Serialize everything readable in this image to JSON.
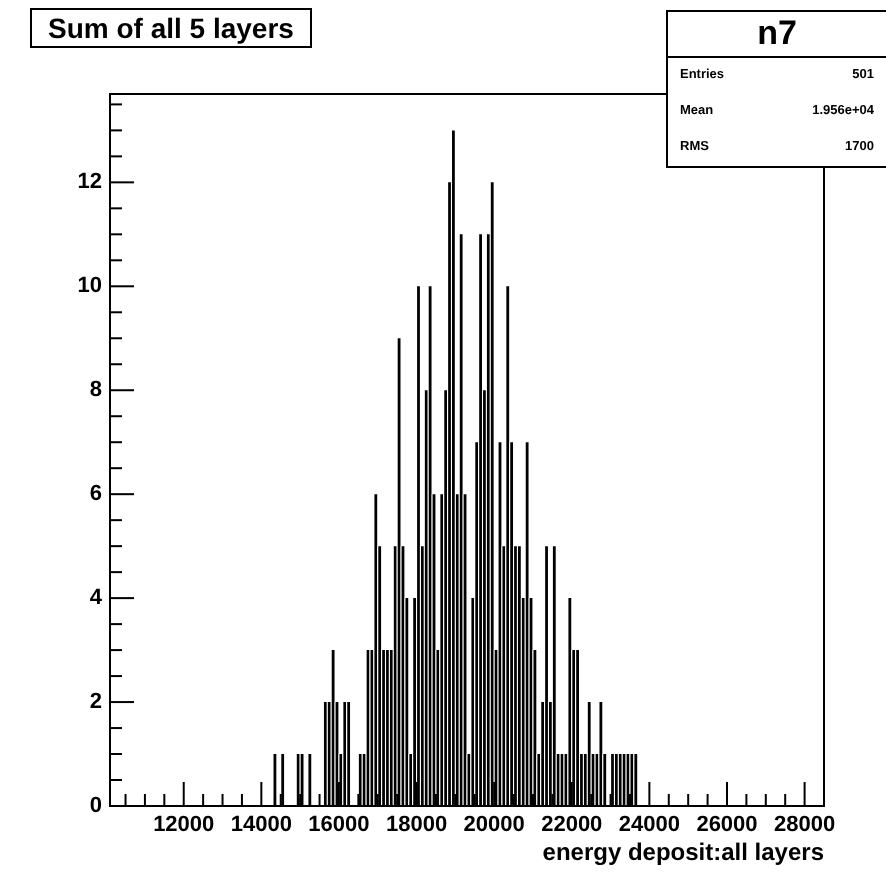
{
  "chart_data": {
    "type": "histogram",
    "title": "Sum of all 5 layers",
    "xlabel": "energy deposit:all layers",
    "annotations": [
      "n7",
      "Entries 501",
      "Mean 1.956e+04",
      "RMS 1700"
    ],
    "color": "#000000",
    "bins": [
      14200,
      14300,
      14400,
      14500,
      14600,
      14700,
      14800,
      14900,
      15000,
      15100,
      15200,
      15300,
      15400,
      15500,
      15600,
      15700,
      15800,
      15900,
      16000,
      16100,
      16200,
      16300,
      16400,
      16500,
      16600,
      16700,
      16800,
      16900,
      17000,
      17100,
      17200,
      17300,
      17400,
      17500,
      17600,
      17700,
      17800,
      17900,
      18000,
      18100,
      18200,
      18300,
      18400,
      18500,
      18600,
      18700,
      18800,
      18900,
      19000,
      19100,
      19200,
      19300,
      19400,
      19500,
      19600,
      19700,
      19800,
      19900,
      20000,
      20100,
      20200,
      20300,
      20400,
      20500,
      20600,
      20700,
      20800,
      20900,
      21000,
      21100,
      21200,
      21300,
      21400,
      21500,
      21600,
      21700,
      21800,
      21900,
      22000,
      22100,
      22200,
      22300,
      22400,
      22500,
      22600,
      22700,
      22800,
      22900,
      23000,
      23100,
      23200,
      23300,
      23400,
      23500,
      23600,
      23700,
      23800
    ],
    "values": [
      0,
      1,
      0,
      1,
      0,
      0,
      0,
      1,
      1,
      0,
      1,
      0,
      0,
      0,
      2,
      2,
      3,
      2,
      1,
      2,
      2,
      0,
      0,
      1,
      1,
      3,
      3,
      6,
      5,
      3,
      3,
      3,
      5,
      9,
      5,
      4,
      1,
      4,
      10,
      5,
      8,
      10,
      6,
      3,
      6,
      8,
      12,
      13,
      6,
      11,
      6,
      1,
      4,
      7,
      11,
      8,
      11,
      12,
      3,
      7,
      5,
      10,
      7,
      5,
      5,
      4,
      7,
      4,
      3,
      1,
      2,
      5,
      2,
      5,
      1,
      1,
      1,
      4,
      3,
      3,
      1,
      1,
      2,
      1,
      1,
      2,
      1,
      0,
      1,
      1,
      1,
      1,
      1,
      1,
      1,
      0
    ],
    "xlim": [
      10100,
      28500
    ],
    "xticks": [
      {
        "value": 10500,
        "label": null
      },
      {
        "value": 11000,
        "label": null
      },
      {
        "value": 11500,
        "label": null
      },
      12000,
      {
        "value": 12500,
        "label": null
      },
      {
        "value": 13000,
        "label": null
      },
      {
        "value": 13500,
        "label": null
      },
      14000,
      {
        "value": 14500,
        "label": null
      },
      {
        "value": 15000,
        "label": null
      },
      {
        "value": 15500,
        "label": null
      },
      16000,
      {
        "value": 16500,
        "label": null
      },
      {
        "value": 17000,
        "label": null
      },
      {
        "value": 17500,
        "label": null
      },
      18000,
      {
        "value": 18500,
        "label": null
      },
      {
        "value": 19000,
        "label": null
      },
      {
        "value": 19500,
        "label": null
      },
      20000,
      {
        "value": 20500,
        "label": null
      },
      {
        "value": 21000,
        "label": null
      },
      {
        "value": 21500,
        "label": null
      },
      22000,
      {
        "value": 22500,
        "label": null
      },
      {
        "value": 23000,
        "label": null
      },
      {
        "value": 23500,
        "label": null
      },
      24000,
      {
        "value": 24500,
        "label": null
      },
      {
        "value": 25000,
        "label": null
      },
      {
        "value": 25500,
        "label": null
      },
      26000,
      {
        "value": 26500,
        "label": null
      },
      {
        "value": 27000,
        "label": null
      },
      {
        "value": 27500,
        "label": null
      },
      28000
    ],
    "ylim": [
      0,
      13.7
    ],
    "yticks": [
      0,
      {
        "value": 0.5,
        "label": null
      },
      {
        "value": 1,
        "label": null
      },
      {
        "value": 1.5,
        "label": null
      },
      2,
      {
        "value": 2.5,
        "label": null
      },
      {
        "value": 3,
        "label": null
      },
      {
        "value": 3.5,
        "label": null
      },
      4,
      {
        "value": 4.5,
        "label": null
      },
      {
        "value": 5,
        "label": null
      },
      {
        "value": 5.5,
        "label": null
      },
      6,
      {
        "value": 6.5,
        "label": null
      },
      {
        "value": 7,
        "label": null
      },
      {
        "value": 7.5,
        "label": null
      },
      8,
      {
        "value": 8.5,
        "label": null
      },
      {
        "value": 9,
        "label": null
      },
      {
        "value": 9.5,
        "label": null
      },
      10,
      {
        "value": 10.5,
        "label": null
      },
      {
        "value": 11,
        "label": null
      },
      {
        "value": 11.5,
        "label": null
      },
      12,
      {
        "value": 12.5,
        "label": null
      },
      {
        "value": 13,
        "label": null
      },
      {
        "value": 13.5,
        "label": null
      }
    ],
    "grid": false,
    "legend": false
  }
}
